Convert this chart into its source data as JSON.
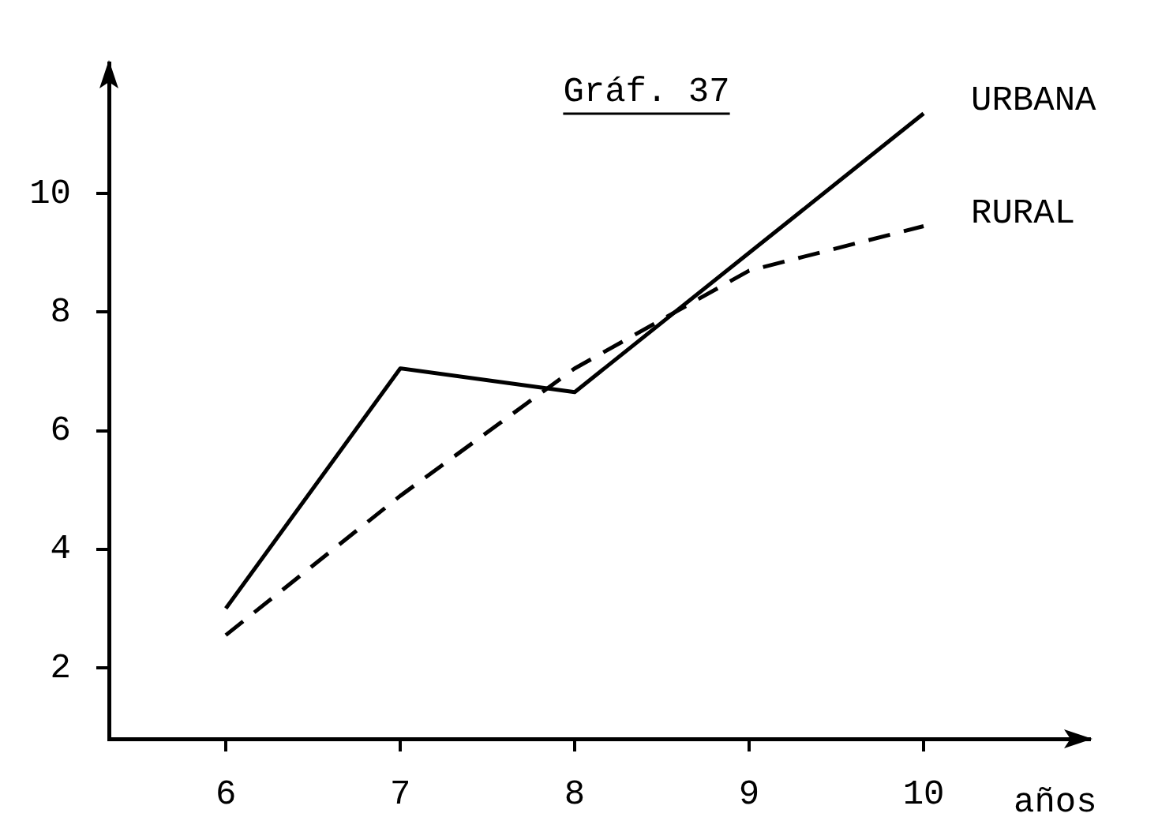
{
  "chart_data": {
    "type": "line",
    "title": "Gráf. 37",
    "xlabel": "años",
    "x": [
      6,
      7,
      8,
      9,
      10
    ],
    "series": [
      {
        "name": "URBANA",
        "color": "#000000",
        "line_style": "solid",
        "values": [
          3.0,
          7.05,
          6.65,
          9.0,
          11.35
        ]
      },
      {
        "name": "RURAL",
        "color": "#000000",
        "line_style": "dashed",
        "values": [
          2.55,
          4.9,
          7.05,
          8.7,
          9.45
        ]
      }
    ],
    "xlim": [
      5.33,
      10.95
    ],
    "xticks": [
      6,
      7,
      8,
      9,
      10
    ],
    "ylim": [
      0.8,
      12.2
    ],
    "yticks": [
      2,
      4,
      6,
      8,
      10
    ],
    "grid": false,
    "legend": false,
    "marker": "none"
  }
}
